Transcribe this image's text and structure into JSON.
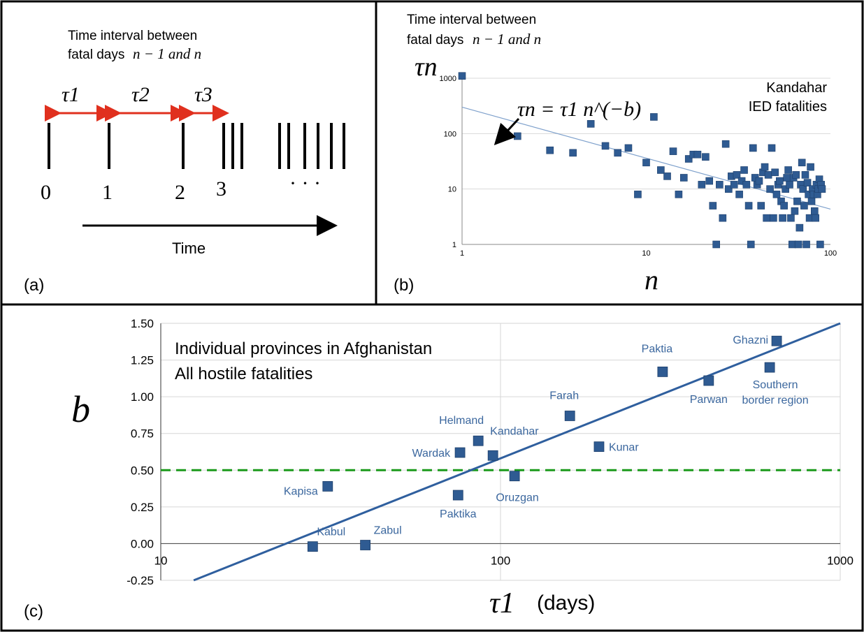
{
  "panel_a": {
    "panel_label": "(a)",
    "header_line1": "Time interval between",
    "header_line2_text": "fatal days",
    "header_line2_math": "n − 1  and  n",
    "tau_labels": [
      "τ1",
      "τ2",
      "τ3"
    ],
    "tick_labels": [
      "0",
      "1",
      "2",
      "3",
      "· · ·"
    ],
    "time_label": "Time"
  },
  "panel_b": {
    "panel_label": "(b)",
    "header_line1": "Time interval between",
    "header_line2_text": "fatal days",
    "header_line2_math": "n − 1  and  n",
    "ylabel": "τn",
    "xlabel": "n",
    "formula": "τn = τ1 n^(−b)",
    "legend_line1": "Kandahar",
    "legend_line2": "IED fatalities",
    "marker_color": "#2f5b92",
    "fit_color": "#7fa1cc"
  },
  "panel_c": {
    "panel_label": "(c)",
    "ylabel": "b",
    "xlabel_unit": "(days)",
    "xlabel_symbol": "τ1",
    "annotation_line1": "Individual provinces in Afghanistan",
    "annotation_line2": "All hostile fatalities",
    "label_color": "#3b679e",
    "marker_color": "#2f5b92",
    "fit_color": "#2f5f9e",
    "threshold_color": "#1a9a1a"
  },
  "chart_data": [
    {
      "type": "scatter",
      "title": "",
      "xlabel": "n",
      "ylabel": "τn",
      "x_scale": "log",
      "y_scale": "log",
      "xlim": [
        1,
        100
      ],
      "ylim": [
        1,
        1000
      ],
      "x_ticks": [
        "1",
        "10",
        "100"
      ],
      "y_ticks": [
        "1",
        "10",
        "100",
        "1000"
      ],
      "grid": true,
      "series": [
        {
          "name": "Kandahar IED fatalities",
          "points": [
            [
              1,
              1100
            ],
            [
              2,
              90
            ],
            [
              3,
              50
            ],
            [
              4,
              45
            ],
            [
              5,
              150
            ],
            [
              6,
              60
            ],
            [
              7,
              45
            ],
            [
              8,
              55
            ],
            [
              9,
              8
            ],
            [
              10,
              30
            ],
            [
              11,
              200
            ],
            [
              12,
              22
            ],
            [
              13,
              17
            ],
            [
              14,
              48
            ],
            [
              15,
              8
            ],
            [
              16,
              16
            ],
            [
              17,
              35
            ],
            [
              18,
              42
            ],
            [
              19,
              42
            ],
            [
              20,
              12
            ],
            [
              21,
              38
            ],
            [
              22,
              14
            ],
            [
              23,
              5
            ],
            [
              24,
              1
            ],
            [
              25,
              12
            ],
            [
              26,
              3
            ],
            [
              27,
              65
            ],
            [
              28,
              10
            ],
            [
              29,
              17
            ],
            [
              30,
              12
            ],
            [
              31,
              18
            ],
            [
              32,
              8
            ],
            [
              33,
              14
            ],
            [
              34,
              22
            ],
            [
              35,
              12
            ],
            [
              36,
              5
            ],
            [
              37,
              1
            ],
            [
              38,
              55
            ],
            [
              39,
              16
            ],
            [
              40,
              12
            ],
            [
              41,
              14
            ],
            [
              42,
              5
            ],
            [
              43,
              20
            ],
            [
              44,
              25
            ],
            [
              45,
              3
            ],
            [
              46,
              18
            ],
            [
              47,
              10
            ],
            [
              48,
              55
            ],
            [
              49,
              3
            ],
            [
              50,
              20
            ],
            [
              51,
              8
            ],
            [
              52,
              12
            ],
            [
              53,
              14
            ],
            [
              54,
              6
            ],
            [
              55,
              3
            ],
            [
              56,
              5
            ],
            [
              57,
              10
            ],
            [
              58,
              16
            ],
            [
              59,
              22
            ],
            [
              60,
              12
            ],
            [
              61,
              3
            ],
            [
              62,
              1
            ],
            [
              63,
              16
            ],
            [
              64,
              4
            ],
            [
              65,
              18
            ],
            [
              66,
              6
            ],
            [
              67,
              1
            ],
            [
              68,
              2
            ],
            [
              69,
              12
            ],
            [
              70,
              30
            ],
            [
              71,
              10
            ],
            [
              72,
              5
            ],
            [
              73,
              18
            ],
            [
              74,
              1
            ],
            [
              75,
              13
            ],
            [
              76,
              8
            ],
            [
              77,
              3
            ],
            [
              78,
              25
            ],
            [
              79,
              6
            ],
            [
              80,
              10
            ],
            [
              81,
              8
            ],
            [
              82,
              4
            ],
            [
              83,
              3
            ],
            [
              84,
              12
            ],
            [
              85,
              8
            ],
            [
              86,
              10
            ],
            [
              87,
              15
            ],
            [
              88,
              1
            ],
            [
              89,
              12
            ],
            [
              90,
              10
            ]
          ]
        }
      ],
      "fit": {
        "tau1": 300,
        "b": 0.92
      }
    },
    {
      "type": "scatter",
      "title": "",
      "xlabel": "τ1 (days)",
      "ylabel": "b",
      "x_scale": "log",
      "xlim": [
        10,
        1000
      ],
      "ylim": [
        -0.25,
        1.5
      ],
      "x_ticks": [
        "10",
        "100",
        "1000"
      ],
      "y_ticks": [
        "1.50",
        "1.25",
        "1.00",
        "0.75",
        "0.50",
        "0.25",
        "0.00",
        "-0.25"
      ],
      "grid": true,
      "threshold_y": 0.5,
      "fit_line": [
        [
          12.5,
          -0.25
        ],
        [
          1000,
          1.5
        ]
      ],
      "points": [
        {
          "label": "Ghazni",
          "x": 650,
          "y": 1.38
        },
        {
          "label": "Paktia",
          "x": 300,
          "y": 1.17
        },
        {
          "label": "Southern border region",
          "x": 620,
          "y": 1.2
        },
        {
          "label": "Parwan",
          "x": 410,
          "y": 1.11
        },
        {
          "label": "Farah",
          "x": 160,
          "y": 0.87
        },
        {
          "label": "Kunar",
          "x": 195,
          "y": 0.66
        },
        {
          "label": "Helmand",
          "x": 86,
          "y": 0.7
        },
        {
          "label": "Wardak",
          "x": 76,
          "y": 0.62
        },
        {
          "label": "Kandahar",
          "x": 95,
          "y": 0.6
        },
        {
          "label": "Oruzgan",
          "x": 110,
          "y": 0.46
        },
        {
          "label": "Kapisa",
          "x": 31,
          "y": 0.39
        },
        {
          "label": "Paktika",
          "x": 75,
          "y": 0.33
        },
        {
          "label": "Kabul",
          "x": 28,
          "y": -0.02
        },
        {
          "label": "Zabul",
          "x": 40,
          "y": -0.01
        }
      ]
    }
  ]
}
